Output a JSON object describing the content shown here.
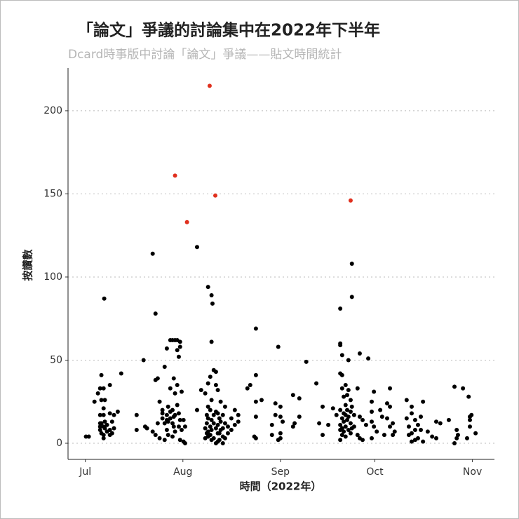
{
  "chart_data": {
    "type": "scatter",
    "title": "「論文」爭議的討論集中在2022年下半年",
    "subtitle": "Dcard時事版中討論「論文」爭議——貼文時間統計",
    "x_label": "時間（2022年）",
    "y_label": "按讚數",
    "xlim": [
      176.5,
      312
    ],
    "ylim": [
      -9.7,
      225.7
    ],
    "xticks": [
      {
        "value": 182,
        "label": "Jul"
      },
      {
        "value": 213,
        "label": "Aug"
      },
      {
        "value": 244,
        "label": "Sep"
      },
      {
        "value": 274,
        "label": "Oct"
      },
      {
        "value": 305,
        "label": "Nov"
      }
    ],
    "yticks": [
      0,
      50,
      100,
      150,
      200
    ],
    "grid": true,
    "series": [
      {
        "color": "#000000",
        "x": [
          182.2,
          183.1,
          184.9,
          186.0,
          186.7,
          186.7,
          186.7,
          186.7,
          186.7,
          187.1,
          187.1,
          187.1,
          187.1,
          187.8,
          187.8,
          187.8,
          187.8,
          187.8,
          187.8,
          188.0,
          188.2,
          188.2,
          188.2,
          188.9,
          188.9,
          189.8,
          189.8,
          189.8,
          189.8,
          190.5,
          190.5,
          191.1,
          191.1,
          192.3,
          193.4,
          198.3,
          198.3,
          200.5,
          201.0,
          201.6,
          203.4,
          203.4,
          204.3,
          204.3,
          204.3,
          205.0,
          205.0,
          205.6,
          205.6,
          206.5,
          206.5,
          206.5,
          207.2,
          207.2,
          207.2,
          207.9,
          207.9,
          207.9,
          207.9,
          208.3,
          208.3,
          208.3,
          209.0,
          209.0,
          209.0,
          209.0,
          209.7,
          209.7,
          209.7,
          209.7,
          210.1,
          210.1,
          210.1,
          210.5,
          210.5,
          210.5,
          210.5,
          211.2,
          211.2,
          211.2,
          211.2,
          211.7,
          211.7,
          211.7,
          212.1,
          212.1,
          212.1,
          212.1,
          212.6,
          212.6,
          213.2,
          213.2,
          213.7,
          213.7,
          217.5,
          217.5,
          218.8,
          220.1,
          220.1,
          220.1,
          220.6,
          220.6,
          220.6,
          221.0,
          221.0,
          221.0,
          221.0,
          221.0,
          221.0,
          221.7,
          221.7,
          221.7,
          221.7,
          222.1,
          222.1,
          222.1,
          222.1,
          222.1,
          222.1,
          222.4,
          222.8,
          222.8,
          222.8,
          222.8,
          223.5,
          223.5,
          223.5,
          223.5,
          223.5,
          224.1,
          224.1,
          224.1,
          224.1,
          224.1,
          224.6,
          224.6,
          224.6,
          225.0,
          225.0,
          225.0,
          225.7,
          225.7,
          225.7,
          225.7,
          226.4,
          226.4,
          226.4,
          227.3,
          227.3,
          228.4,
          228.4,
          229.5,
          229.5,
          230.6,
          230.6,
          233.5,
          234.4,
          235.7,
          236.2,
          236.2,
          236.2,
          236.2,
          236.2,
          238.0,
          241.3,
          241.3,
          242.4,
          242.4,
          243.3,
          243.3,
          244.0,
          244.0,
          244.0,
          244.0,
          244.7,
          248.0,
          248.0,
          248.5,
          250.0,
          250.0,
          252.2,
          255.4,
          256.3,
          257.4,
          257.4,
          259.2,
          260.7,
          261.8,
          263.0,
          263.0,
          263.0,
          263.0,
          263.0,
          263.0,
          263.0,
          263.0,
          263.6,
          263.6,
          263.6,
          263.6,
          263.6,
          263.6,
          264.1,
          264.1,
          264.1,
          264.1,
          264.7,
          264.7,
          264.7,
          264.7,
          264.7,
          265.2,
          265.2,
          265.2,
          265.6,
          265.6,
          265.6,
          265.6,
          266.3,
          266.3,
          266.3,
          266.3,
          266.7,
          266.7,
          266.7,
          266.7,
          267.4,
          267.4,
          268.5,
          268.5,
          269.2,
          269.2,
          269.2,
          270.1,
          270.1,
          271.2,
          271.9,
          273.0,
          273.0,
          273.0,
          273.0,
          273.7,
          273.7,
          274.6,
          275.7,
          276.3,
          277.0,
          277.9,
          277.9,
          278.8,
          278.8,
          278.8,
          279.7,
          279.7,
          280.3,
          284.1,
          284.1,
          284.8,
          284.8,
          285.7,
          285.7,
          285.7,
          285.7,
          286.8,
          286.8,
          286.8,
          287.7,
          287.7,
          288.6,
          288.6,
          289.3,
          289.3,
          290.8,
          292.2,
          293.5,
          293.5,
          294.8,
          297.5,
          299.3,
          299.3,
          300.0,
          300.0,
          300.4,
          302.0,
          303.3,
          303.8,
          304.2,
          304.2,
          304.2,
          304.7,
          306.0
        ],
        "values": [
          4,
          4,
          25,
          30,
          33,
          17,
          8,
          10,
          12,
          41,
          26,
          6,
          12,
          33,
          21,
          17,
          10,
          5,
          3,
          87,
          26,
          13,
          9,
          11,
          7,
          35,
          18,
          8,
          5,
          13,
          6,
          17,
          9,
          19,
          42,
          17,
          8,
          50,
          10,
          9,
          114,
          7,
          78,
          38,
          5,
          39,
          12,
          25,
          3,
          18,
          15,
          20,
          12,
          46,
          2,
          57,
          17,
          14,
          8,
          22,
          13,
          5,
          62,
          33,
          19,
          15,
          62,
          20,
          12,
          4,
          39,
          16,
          10,
          62,
          30,
          17,
          7,
          62,
          56,
          35,
          23,
          52,
          18,
          10,
          61,
          58,
          14,
          2,
          31,
          8,
          14,
          1,
          10,
          0,
          118,
          20,
          32,
          30,
          9,
          3,
          17,
          12,
          6,
          94,
          36,
          22,
          15,
          7,
          4,
          40,
          20,
          10,
          5,
          89,
          61,
          26,
          14,
          8,
          2,
          84,
          44,
          17,
          12,
          3,
          43,
          35,
          19,
          9,
          0,
          32,
          18,
          11,
          6,
          1,
          15,
          6,
          2,
          25,
          13,
          8,
          17,
          9,
          4,
          0,
          22,
          12,
          3,
          10,
          6,
          15,
          8,
          20,
          11,
          17,
          13,
          33,
          35,
          4,
          69,
          41,
          25,
          16,
          3,
          26,
          5,
          11,
          24,
          17,
          58,
          2,
          22,
          16,
          6,
          3,
          13,
          10,
          29,
          12,
          27,
          16,
          49,
          36,
          12,
          22,
          5,
          11,
          21,
          17,
          81,
          60,
          59,
          42,
          20,
          11,
          8,
          2,
          53,
          41,
          33,
          15,
          9,
          5,
          28,
          18,
          13,
          7,
          35,
          23,
          17,
          10,
          4,
          29,
          20,
          14,
          50,
          32,
          16,
          8,
          26,
          19,
          12,
          6,
          108,
          88,
          22,
          9,
          17,
          10,
          33,
          5,
          54,
          16,
          3,
          14,
          2,
          11,
          51,
          25,
          19,
          13,
          3,
          31,
          10,
          7,
          20,
          16,
          5,
          24,
          15,
          33,
          22,
          10,
          12,
          5,
          7,
          26,
          15,
          10,
          5,
          22,
          18,
          6,
          1,
          14,
          8,
          2,
          11,
          3,
          16,
          8,
          25,
          1,
          7,
          4,
          13,
          3,
          12,
          14,
          34,
          0,
          8,
          3,
          5,
          33,
          3,
          28,
          16,
          14,
          10,
          17,
          6
        ]
      },
      {
        "color": "#e0301e",
        "x": [
          221.5,
          210.5,
          223.3,
          214.3,
          266.3
        ],
        "values": [
          215,
          161,
          149,
          133,
          146
        ]
      }
    ]
  }
}
